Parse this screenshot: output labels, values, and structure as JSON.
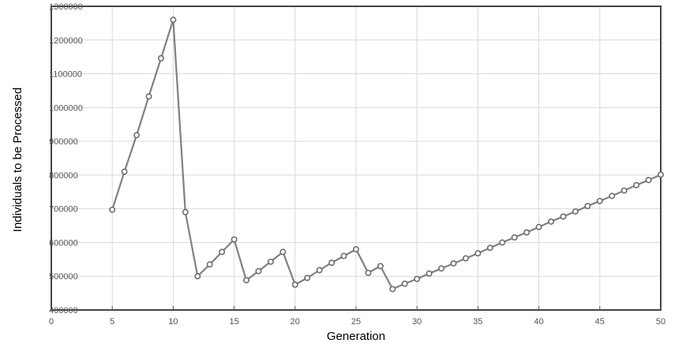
{
  "chart_data": {
    "type": "line",
    "xlabel": "Generation",
    "ylabel": "Individuals to be Processed",
    "xlim": [
      0,
      50
    ],
    "ylim": [
      400000,
      1300000
    ],
    "x_ticks": [
      0,
      5,
      10,
      15,
      20,
      25,
      30,
      35,
      40,
      45,
      50
    ],
    "x_tick_labels": [
      "0",
      "5",
      "10",
      "15",
      "20",
      "25",
      "30",
      "35",
      "40",
      "45",
      "50"
    ],
    "y_ticks": [
      400000,
      500000,
      600000,
      700000,
      800000,
      900000,
      1000000,
      1100000,
      1200000,
      1300000
    ],
    "y_tick_labels": [
      "400000",
      "500000",
      "600000",
      "700000",
      "800000",
      "900000",
      "1000000",
      "1100000",
      "1200000",
      "1300000"
    ],
    "grid": true,
    "colors": {
      "line": "#808080",
      "marker_stroke": "#6e6e6e",
      "marker_fill": "#ffffff",
      "grid": "#d9d9d9",
      "frame": "#444444"
    },
    "series": [
      {
        "x": [
          5,
          6,
          7,
          8,
          9,
          10,
          11,
          12,
          13,
          14,
          15,
          16,
          17,
          18,
          19,
          20,
          21,
          22,
          23,
          24,
          25,
          26,
          27,
          28,
          29,
          30,
          31,
          32,
          33,
          34,
          35,
          36,
          37,
          38,
          39,
          40,
          41,
          42,
          43,
          44,
          45,
          46,
          47,
          48,
          49,
          50
        ],
        "values": [
          697000,
          810000,
          918000,
          1033000,
          1146000,
          1260000,
          690000,
          500000,
          535000,
          572000,
          609000,
          488000,
          515000,
          543000,
          572000,
          475000,
          495000,
          518000,
          540000,
          560000,
          580000,
          510000,
          530000,
          462000,
          478000,
          492000,
          508000,
          523000,
          538000,
          553000,
          568000,
          584000,
          600000,
          615000,
          630000,
          646000,
          662000,
          677000,
          692000,
          708000,
          723000,
          738000,
          754000,
          770000,
          785000,
          801000
        ]
      }
    ]
  }
}
